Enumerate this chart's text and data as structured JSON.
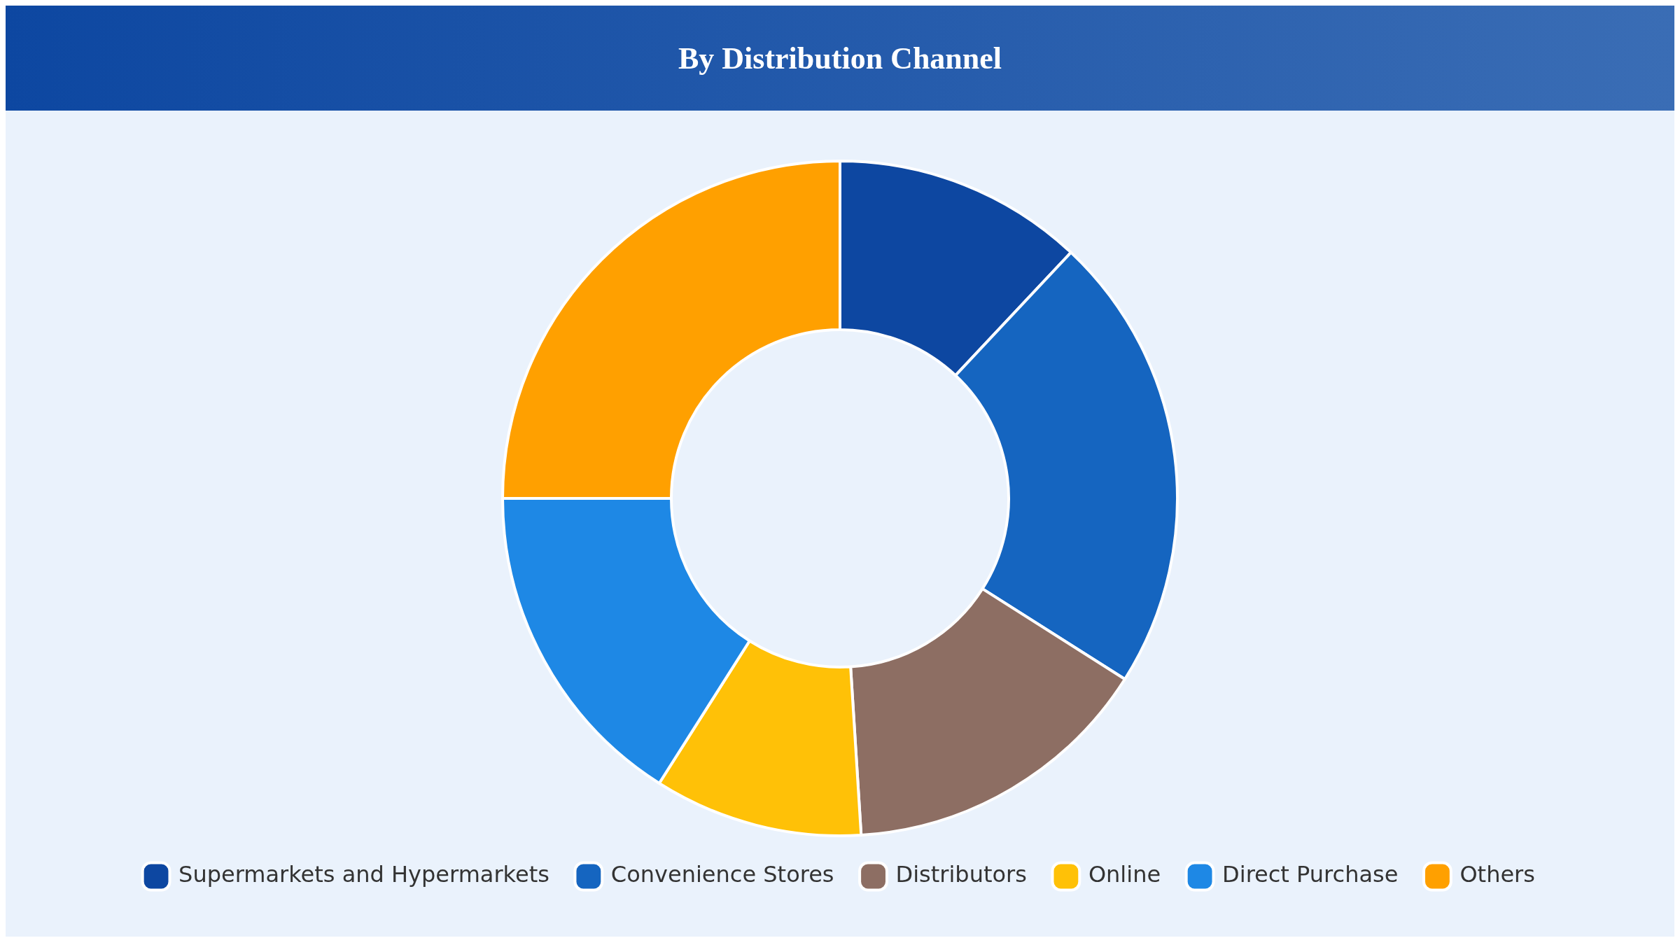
{
  "chart_data": {
    "type": "donut",
    "title": "By Distribution Channel",
    "categories": [
      "Supermarkets and Hypermarkets",
      "Convenience Stores",
      "Distributors",
      "Online",
      "Direct Purchase",
      "Others"
    ],
    "values": [
      12,
      22,
      15,
      10,
      16,
      25
    ],
    "colors": [
      "#0d47a1",
      "#1565c0",
      "#8d6e63",
      "#ffc107",
      "#1e88e5",
      "#ffa000"
    ],
    "legend": "bottom"
  }
}
